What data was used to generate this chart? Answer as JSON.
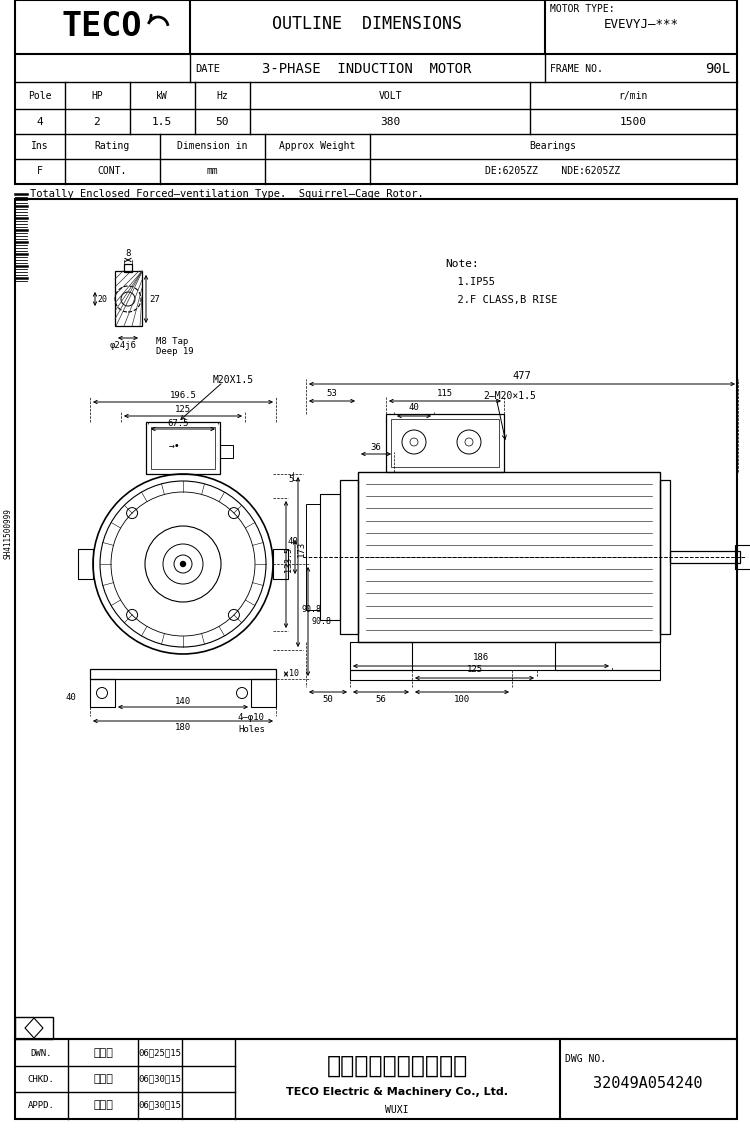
{
  "title_outline": "OUTLINE  DIMENSIONS",
  "title_sub": "3-PHASE  INDUCTION  MOTOR",
  "motor_type_label": "MOTOR TYPE:",
  "motor_type_value": "EVEVYJ—***",
  "frame_no_label": "FRAME NO.",
  "frame_no_value": "90L",
  "date_label": "DATE",
  "table1_headers": [
    "Pole",
    "HP",
    "kW",
    "Hz",
    "VOLT",
    "r/min"
  ],
  "table1_values": [
    "4",
    "2",
    "1.5",
    "50",
    "380",
    "1500"
  ],
  "table2_headers": [
    "Ins",
    "Rating",
    "Dimension in",
    "Approx Weight",
    "Bearings"
  ],
  "table2_values": [
    "F",
    "CONT.",
    "mm",
    "",
    "DE:6205ZZ    NDE:6205ZZ"
  ],
  "description": "Totally Enclosed Forced—ventilation Type.  Squirrel—Cage Rotor.",
  "note_lines": [
    "Note:",
    "  1.IP55",
    "  2.F CLASS,B RISE"
  ],
  "dwn_label": "DWN.",
  "dwn_name": "季東援",
  "dwn_date": "06‥25‥15",
  "chkd_label": "CHKD.",
  "chkd_name": "薛敷高",
  "chkd_date": "06‥30‥15",
  "appd_label": "APPD.",
  "appd_name": "郭耀良",
  "appd_date": "06‥30‥15",
  "company_cn": "東元電機股份有限公司",
  "company_en": "TECO Electric & Machinery Co., Ltd.",
  "factory": "WUXI",
  "dwg_no_label": "DWG NO.",
  "dwg_no": "32049A054240",
  "sidebar_text": "SH411500999",
  "lc": "#000000",
  "bg": "#ffffff"
}
